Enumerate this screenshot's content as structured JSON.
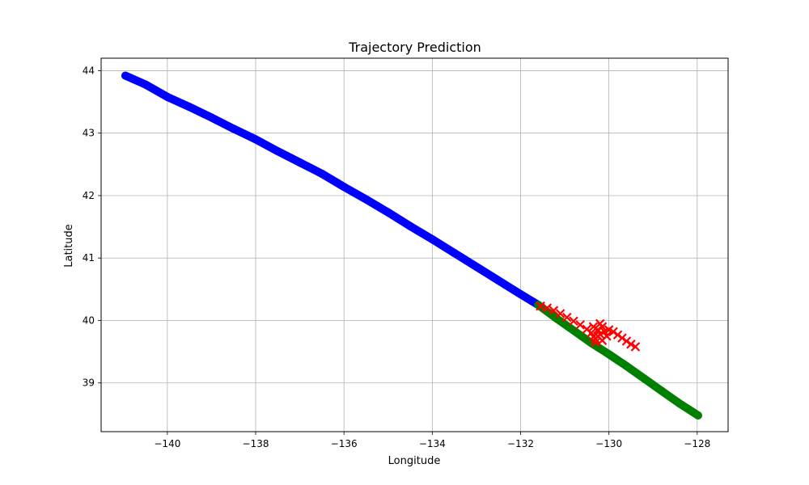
{
  "chart_data": {
    "type": "scatter",
    "title": "Trajectory Prediction",
    "xlabel": "Longitude",
    "ylabel": "Latitude",
    "xlim": [
      -141.5,
      -127.3
    ],
    "ylim": [
      38.22,
      44.2
    ],
    "grid": true,
    "x_ticks": [
      -140,
      -138,
      -136,
      -134,
      -132,
      -130,
      -128
    ],
    "x_tick_labels": [
      "−140",
      "−138",
      "−136",
      "−134",
      "−132",
      "−130",
      "−128"
    ],
    "y_ticks": [
      39,
      40,
      41,
      42,
      43,
      44
    ],
    "y_tick_labels": [
      "39",
      "40",
      "41",
      "42",
      "43",
      "44"
    ],
    "series": [
      {
        "marker": "circle",
        "color": "#0000ff",
        "x": [
          -140.95,
          -140.5,
          -140.0,
          -139.5,
          -139.0,
          -138.5,
          -138.0,
          -137.5,
          -137.0,
          -136.5,
          -136.0,
          -135.5,
          -135.0,
          -134.5,
          -134.0,
          -133.5,
          -133.0,
          -132.5,
          -132.0,
          -131.6
        ],
        "y": [
          43.92,
          43.78,
          43.58,
          43.42,
          43.25,
          43.07,
          42.9,
          42.71,
          42.53,
          42.35,
          42.14,
          41.94,
          41.73,
          41.51,
          41.3,
          41.08,
          40.86,
          40.64,
          40.42,
          40.25
        ]
      },
      {
        "marker": "circle",
        "color": "#008000",
        "x": [
          -131.6,
          -131.2,
          -130.8,
          -130.4,
          -130.0,
          -129.6,
          -129.2,
          -128.8,
          -128.4,
          -127.98
        ],
        "y": [
          40.25,
          40.04,
          39.84,
          39.64,
          39.46,
          39.27,
          39.07,
          38.87,
          38.67,
          38.48
        ]
      },
      {
        "marker": "x",
        "color": "#ff0000",
        "x": [
          -131.55,
          -131.4,
          -131.25,
          -131.1,
          -130.95,
          -130.8,
          -130.65,
          -130.5,
          -130.4,
          -130.35,
          -130.3,
          -130.25,
          -130.2,
          -130.15,
          -130.1,
          -130.05,
          -130.0,
          -129.9,
          -129.8,
          -129.7,
          -129.6,
          -129.5,
          -129.4,
          -130.35,
          -130.25,
          -130.15,
          -130.3,
          -130.2
        ],
        "y": [
          40.23,
          40.2,
          40.16,
          40.11,
          40.05,
          39.99,
          39.93,
          39.86,
          39.8,
          39.74,
          39.7,
          39.75,
          39.95,
          39.9,
          39.82,
          39.75,
          39.85,
          39.82,
          39.77,
          39.72,
          39.67,
          39.62,
          39.58,
          39.9,
          39.85,
          39.68,
          39.65,
          39.78
        ]
      }
    ]
  }
}
